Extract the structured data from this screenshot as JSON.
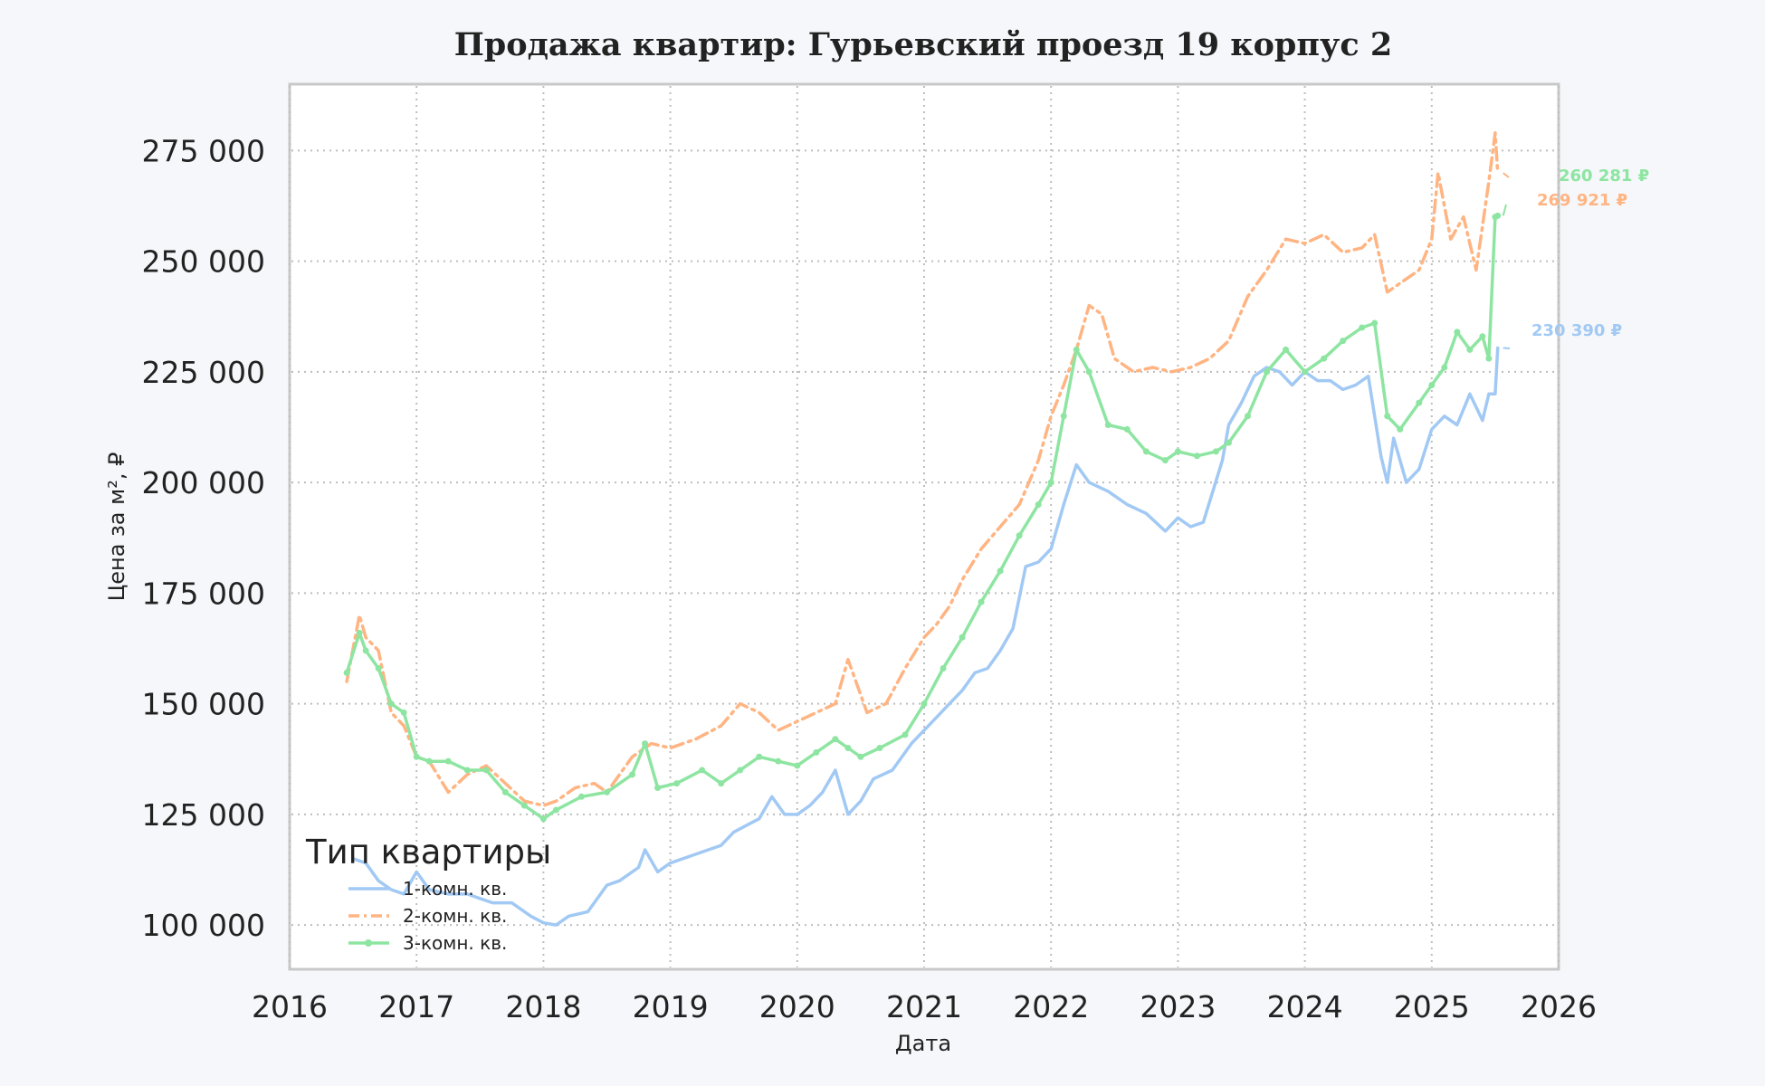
{
  "chart_data": {
    "type": "line",
    "title": "Продажа квартир: Гурьевский проезд 19 корпус 2",
    "xlabel": "Дата",
    "ylabel": "Цена за м², ₽",
    "xlim": [
      2016.0,
      2026.0
    ],
    "ylim": [
      90000,
      290000
    ],
    "x_ticks": [
      "2016",
      "2017",
      "2018",
      "2019",
      "2020",
      "2021",
      "2022",
      "2023",
      "2024",
      "2025",
      "2026"
    ],
    "y_ticks": [
      {
        "value": 100000,
        "label": "100 000"
      },
      {
        "value": 125000,
        "label": "125 000"
      },
      {
        "value": 150000,
        "label": "150 000"
      },
      {
        "value": 175000,
        "label": "175 000"
      },
      {
        "value": 200000,
        "label": "200 000"
      },
      {
        "value": 225000,
        "label": "225 000"
      },
      {
        "value": 250000,
        "label": "250 000"
      },
      {
        "value": 275000,
        "label": "275 000"
      }
    ],
    "grid": true,
    "legend": {
      "title": "Тип квартиры",
      "position": "lower-left"
    },
    "series": [
      {
        "name": "1-комн. кв.",
        "color": "#a1c9f4",
        "style": "solid",
        "x": [
          2016.5,
          2016.6,
          2016.7,
          2016.8,
          2016.9,
          2017.0,
          2017.1,
          2017.25,
          2017.4,
          2017.5,
          2017.6,
          2017.75,
          2017.9,
          2018.0,
          2018.1,
          2018.2,
          2018.35,
          2018.5,
          2018.6,
          2018.75,
          2018.8,
          2018.9,
          2019.0,
          2019.2,
          2019.4,
          2019.5,
          2019.7,
          2019.8,
          2019.9,
          2020.0,
          2020.1,
          2020.2,
          2020.3,
          2020.4,
          2020.5,
          2020.6,
          2020.75,
          2020.9,
          2021.0,
          2021.1,
          2021.2,
          2021.3,
          2021.4,
          2021.5,
          2021.6,
          2021.7,
          2021.8,
          2021.9,
          2022.0,
          2022.1,
          2022.2,
          2022.3,
          2022.45,
          2022.6,
          2022.75,
          2022.9,
          2023.0,
          2023.1,
          2023.2,
          2023.35,
          2023.4,
          2023.5,
          2023.6,
          2023.7,
          2023.8,
          2023.9,
          2024.0,
          2024.1,
          2024.2,
          2024.3,
          2024.4,
          2024.5,
          2024.6,
          2024.65,
          2024.7,
          2024.8,
          2024.9,
          2025.0,
          2025.1,
          2025.2,
          2025.3,
          2025.4,
          2025.45,
          2025.5,
          2025.52
        ],
        "values": [
          115000,
          114000,
          110000,
          108000,
          107000,
          112000,
          108000,
          107000,
          107000,
          106000,
          105000,
          105000,
          102000,
          100500,
          100000,
          102000,
          103000,
          109000,
          110000,
          113000,
          117000,
          112000,
          114000,
          116000,
          118000,
          121000,
          124000,
          129000,
          125000,
          125000,
          127000,
          130000,
          135000,
          125000,
          128000,
          133000,
          135000,
          141000,
          144000,
          147000,
          150000,
          153000,
          157000,
          158000,
          162000,
          167000,
          181000,
          182000,
          185000,
          195000,
          204000,
          200000,
          198000,
          195000,
          193000,
          189000,
          192000,
          190000,
          191000,
          205000,
          213000,
          218000,
          224000,
          226000,
          225000,
          222000,
          225000,
          223000,
          223000,
          221000,
          222000,
          224000,
          206000,
          200000,
          210000,
          200000,
          203000,
          212000,
          215000,
          213000,
          220000,
          214000,
          220000,
          220000,
          230390
        ],
        "annotation": "230 390 ₽"
      },
      {
        "name": "2-комн. кв.",
        "color": "#ffb482",
        "style": "dashdot",
        "x": [
          2016.45,
          2016.55,
          2016.6,
          2016.7,
          2016.8,
          2016.9,
          2017.0,
          2017.1,
          2017.25,
          2017.4,
          2017.55,
          2017.7,
          2017.85,
          2018.0,
          2018.1,
          2018.25,
          2018.4,
          2018.5,
          2018.7,
          2018.85,
          2019.0,
          2019.2,
          2019.4,
          2019.55,
          2019.7,
          2019.85,
          2020.0,
          2020.15,
          2020.3,
          2020.4,
          2020.55,
          2020.7,
          2020.85,
          2021.0,
          2021.1,
          2021.2,
          2021.3,
          2021.45,
          2021.6,
          2021.75,
          2021.9,
          2022.0,
          2022.1,
          2022.2,
          2022.3,
          2022.4,
          2022.5,
          2022.65,
          2022.8,
          2022.95,
          2023.1,
          2023.25,
          2023.4,
          2023.55,
          2023.7,
          2023.85,
          2024.0,
          2024.15,
          2024.3,
          2024.45,
          2024.55,
          2024.65,
          2024.75,
          2024.9,
          2025.0,
          2025.05,
          2025.15,
          2025.25,
          2025.35,
          2025.45,
          2025.5,
          2025.52
        ],
        "values": [
          155000,
          170000,
          165000,
          162000,
          148000,
          145000,
          138000,
          137000,
          130000,
          134000,
          136000,
          132000,
          128000,
          127000,
          128000,
          131000,
          132000,
          130000,
          138000,
          141000,
          140000,
          142000,
          145000,
          150000,
          148000,
          144000,
          146000,
          148000,
          150000,
          160000,
          148000,
          150000,
          158000,
          165000,
          168000,
          172000,
          178000,
          185000,
          190000,
          195000,
          205000,
          215000,
          222000,
          230000,
          240000,
          238000,
          228000,
          225000,
          226000,
          225000,
          226000,
          228000,
          232000,
          242000,
          248000,
          255000,
          254000,
          256000,
          252000,
          253000,
          256000,
          243000,
          245000,
          248000,
          255000,
          270000,
          255000,
          260000,
          248000,
          268000,
          279000,
          269921
        ],
        "annotation": "269 921 ₽"
      },
      {
        "name": "3-комн. кв.",
        "color": "#8de5a1",
        "style": "solid-markers",
        "x": [
          2016.45,
          2016.55,
          2016.6,
          2016.7,
          2016.8,
          2016.9,
          2017.0,
          2017.1,
          2017.25,
          2017.4,
          2017.55,
          2017.7,
          2017.85,
          2018.0,
          2018.1,
          2018.3,
          2018.5,
          2018.7,
          2018.8,
          2018.9,
          2019.05,
          2019.25,
          2019.4,
          2019.55,
          2019.7,
          2019.85,
          2020.0,
          2020.15,
          2020.3,
          2020.4,
          2020.5,
          2020.65,
          2020.85,
          2021.0,
          2021.15,
          2021.3,
          2021.45,
          2021.6,
          2021.75,
          2021.9,
          2022.0,
          2022.1,
          2022.2,
          2022.3,
          2022.45,
          2022.6,
          2022.75,
          2022.9,
          2023.0,
          2023.15,
          2023.3,
          2023.4,
          2023.55,
          2023.7,
          2023.85,
          2024.0,
          2024.15,
          2024.3,
          2024.45,
          2024.55,
          2024.65,
          2024.75,
          2024.9,
          2025.0,
          2025.1,
          2025.2,
          2025.3,
          2025.4,
          2025.45,
          2025.5,
          2025.52
        ],
        "values": [
          157000,
          166000,
          162000,
          158000,
          150000,
          148000,
          138000,
          137000,
          137000,
          135000,
          135000,
          130000,
          127000,
          124000,
          126000,
          129000,
          130000,
          134000,
          141000,
          131000,
          132000,
          135000,
          132000,
          135000,
          138000,
          137000,
          136000,
          139000,
          142000,
          140000,
          138000,
          140000,
          143000,
          150000,
          158000,
          165000,
          173000,
          180000,
          188000,
          195000,
          200000,
          215000,
          230000,
          225000,
          213000,
          212000,
          207000,
          205000,
          207000,
          206000,
          207000,
          209000,
          215000,
          225000,
          230000,
          225000,
          228000,
          232000,
          235000,
          236000,
          215000,
          212000,
          218000,
          222000,
          226000,
          234000,
          230000,
          233000,
          228000,
          260000,
          260281
        ],
        "annotation": "260 281 ₽"
      }
    ]
  }
}
